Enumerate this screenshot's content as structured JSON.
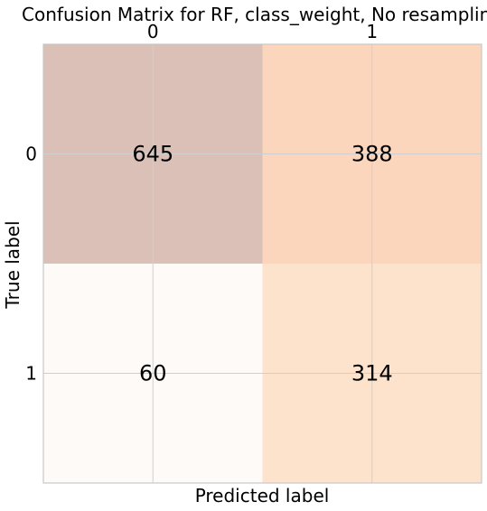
{
  "chart_data": {
    "type": "heatmap",
    "title": "Confusion Matrix for RF, class_weight, No resampling",
    "xlabel": "Predicted label",
    "ylabel": "True label",
    "x_categories": [
      "0",
      "1"
    ],
    "y_categories": [
      "0",
      "1"
    ],
    "values": [
      [
        645,
        388
      ],
      [
        60,
        314
      ]
    ],
    "x_tick_position": "top",
    "grid": true,
    "colors": {
      "cell_0_0": "#dac0b6",
      "cell_0_1": "#fbd6bc",
      "cell_1_0": "#fefaf7",
      "cell_1_1": "#fee3cc",
      "grid": "#cfcfcf",
      "frame": "#c8c8c8"
    }
  }
}
